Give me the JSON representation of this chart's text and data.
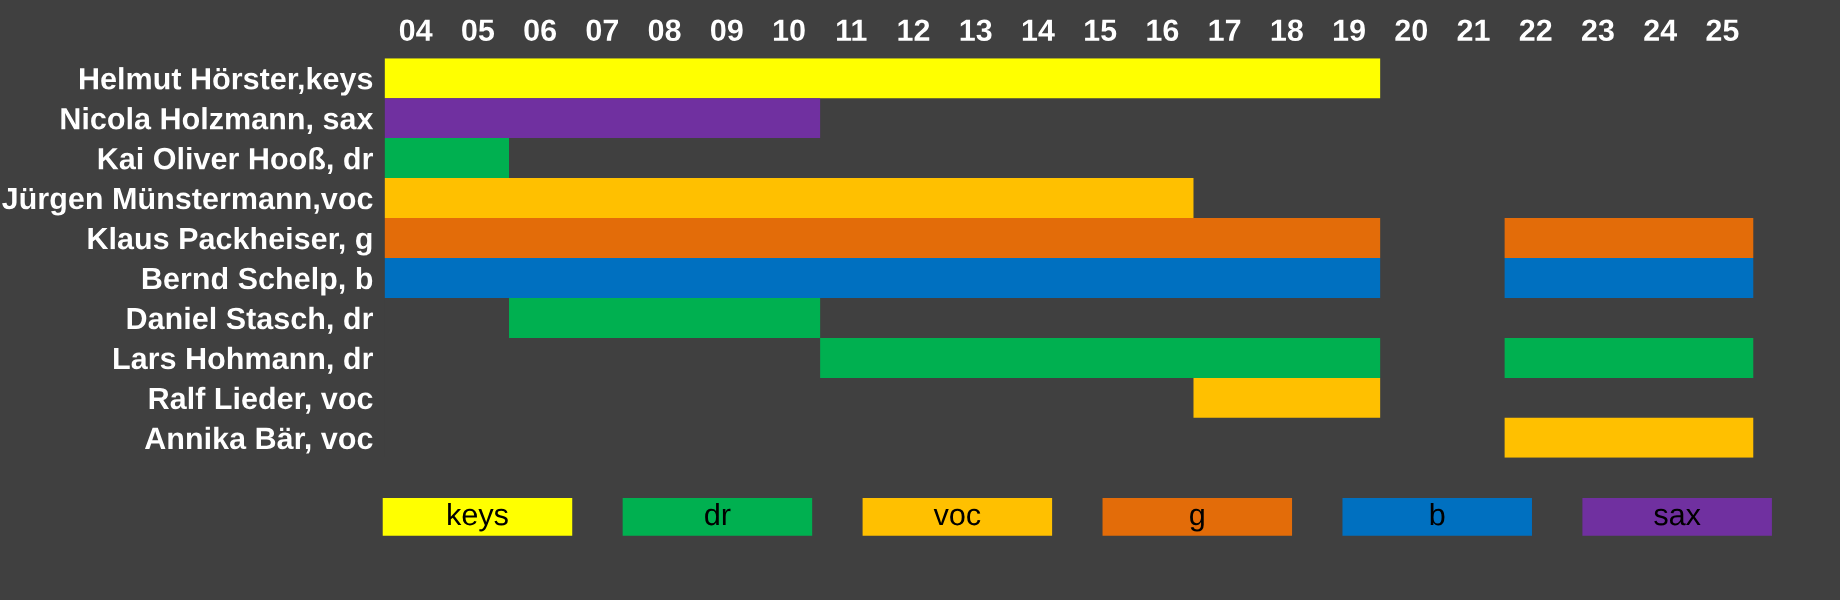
{
  "chart_data": {
    "type": "bar",
    "orientation": "horizontal",
    "categories": [
      "Helmut Hörster,keys",
      "Nicola Holzmann, sax",
      "Kai Oliver Hooß, dr",
      "Jürgen Münstermann,voc",
      "Klaus Packheiser, g",
      "Bernd Schelp, b",
      "Daniel Stasch, dr",
      "Lars Hohmann, dr",
      "Ralf Lieder, voc",
      "Annika Bär, voc"
    ],
    "series": [
      {
        "name": "keys",
        "color": "#ffff00",
        "base": [
          3.5,
          null,
          null,
          null,
          null,
          null,
          null,
          null,
          null,
          null
        ],
        "values": [
          16,
          null,
          null,
          null,
          null,
          null,
          null,
          null,
          null,
          null
        ]
      },
      {
        "name": "dr",
        "color": "#00b050",
        "base": [
          null,
          null,
          3.5,
          null,
          null,
          null,
          5.5,
          10.5,
          null,
          null
        ],
        "values": [
          null,
          null,
          2,
          null,
          null,
          null,
          5,
          9,
          null,
          null
        ]
      },
      {
        "name": "voc",
        "color": "#ffc000",
        "base": [
          null,
          null,
          null,
          3.5,
          null,
          null,
          null,
          null,
          16.5,
          21.5
        ],
        "values": [
          null,
          null,
          null,
          13,
          null,
          null,
          null,
          null,
          3,
          4
        ]
      },
      {
        "name": "g",
        "color": "#e36c09",
        "base": [
          null,
          null,
          null,
          null,
          3.5,
          null,
          null,
          null,
          null,
          null
        ],
        "values": [
          null,
          null,
          null,
          null,
          16,
          null,
          null,
          null,
          null,
          null
        ]
      },
      {
        "name": "b",
        "color": "#0070c0",
        "base": [
          null,
          null,
          null,
          null,
          null,
          3.5,
          null,
          null,
          null,
          null
        ],
        "values": [
          null,
          null,
          null,
          null,
          null,
          16,
          null,
          null,
          null,
          null
        ]
      },
      {
        "name": "sax",
        "color": "#7030a0",
        "base": [
          null,
          3.5,
          null,
          null,
          null,
          null,
          null,
          null,
          null,
          null
        ],
        "values": [
          null,
          7,
          null,
          null,
          null,
          null,
          null,
          null,
          null,
          null
        ]
      },
      {
        "colors": [
          null,
          null,
          null,
          null,
          "#e36c09",
          "#0070c0",
          null,
          "#00b050",
          null,
          null
        ],
        "base": [
          null,
          null,
          null,
          null,
          21.5,
          21.5,
          null,
          21.5,
          null,
          null
        ],
        "values": [
          null,
          null,
          null,
          null,
          4,
          4,
          null,
          4,
          null,
          null
        ]
      }
    ],
    "xlim": [
      3.5,
      25.5
    ],
    "xticks": [
      {
        "value": 4,
        "label": "04"
      },
      {
        "value": 5,
        "label": "05"
      },
      {
        "value": 6,
        "label": "06"
      },
      {
        "value": 7,
        "label": "07"
      },
      {
        "value": 8,
        "label": "08"
      },
      {
        "value": 9,
        "label": "09"
      },
      {
        "value": 10,
        "label": "10"
      },
      {
        "value": 11,
        "label": "11"
      },
      {
        "value": 12,
        "label": "12"
      },
      {
        "value": 13,
        "label": "13"
      },
      {
        "value": 14,
        "label": "14"
      },
      {
        "value": 15,
        "label": "15"
      },
      {
        "value": 16,
        "label": "16"
      },
      {
        "value": 17,
        "label": "17"
      },
      {
        "value": 18,
        "label": "18"
      },
      {
        "value": 19,
        "label": "19"
      },
      {
        "value": 20,
        "label": "20"
      },
      {
        "value": 21,
        "label": "21"
      },
      {
        "value": 22,
        "label": "22"
      },
      {
        "value": 23,
        "label": "23"
      },
      {
        "value": 24,
        "label": "24"
      },
      {
        "value": 25,
        "label": "25"
      }
    ],
    "grid": false,
    "legend": "bottom"
  }
}
